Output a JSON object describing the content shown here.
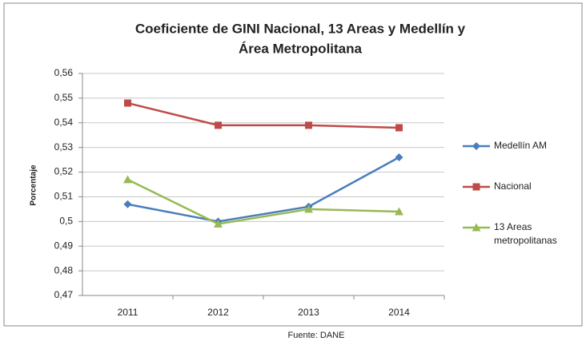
{
  "chart_data": {
    "type": "line",
    "title": [
      "Coeficiente de GINI Nacional, 13 Areas y Medellín y",
      "Área Metropolitana"
    ],
    "y_label": "Porcentaje",
    "source": "Fuente:  DANE",
    "categories": [
      "2011",
      "2012",
      "2013",
      "2014"
    ],
    "series": [
      {
        "name": "Medellín AM",
        "color": "#4a7ebb",
        "marker": "diamond",
        "values": [
          0.507,
          0.5,
          0.506,
          0.526
        ]
      },
      {
        "name": "Nacional",
        "color": "#be4b48",
        "marker": "square",
        "values": [
          0.548,
          0.539,
          0.539,
          0.538
        ]
      },
      {
        "name": "13 Areas metropolitanas",
        "color": "#98b954",
        "marker": "triangle",
        "values": [
          0.517,
          0.499,
          0.505,
          0.504
        ]
      }
    ],
    "ylim": [
      0.47,
      0.56
    ],
    "yticks": [
      {
        "value": 0.47,
        "label": "0,47"
      },
      {
        "value": 0.48,
        "label": "0,48"
      },
      {
        "value": 0.49,
        "label": "0,49"
      },
      {
        "value": 0.5,
        "label": "0,5"
      },
      {
        "value": 0.51,
        "label": "0,51"
      },
      {
        "value": 0.52,
        "label": "0,52"
      },
      {
        "value": 0.53,
        "label": "0,53"
      },
      {
        "value": 0.54,
        "label": "0,54"
      },
      {
        "value": 0.55,
        "label": "0,55"
      },
      {
        "value": 0.56,
        "label": "0,56"
      }
    ],
    "grid": true,
    "legend": "right"
  }
}
